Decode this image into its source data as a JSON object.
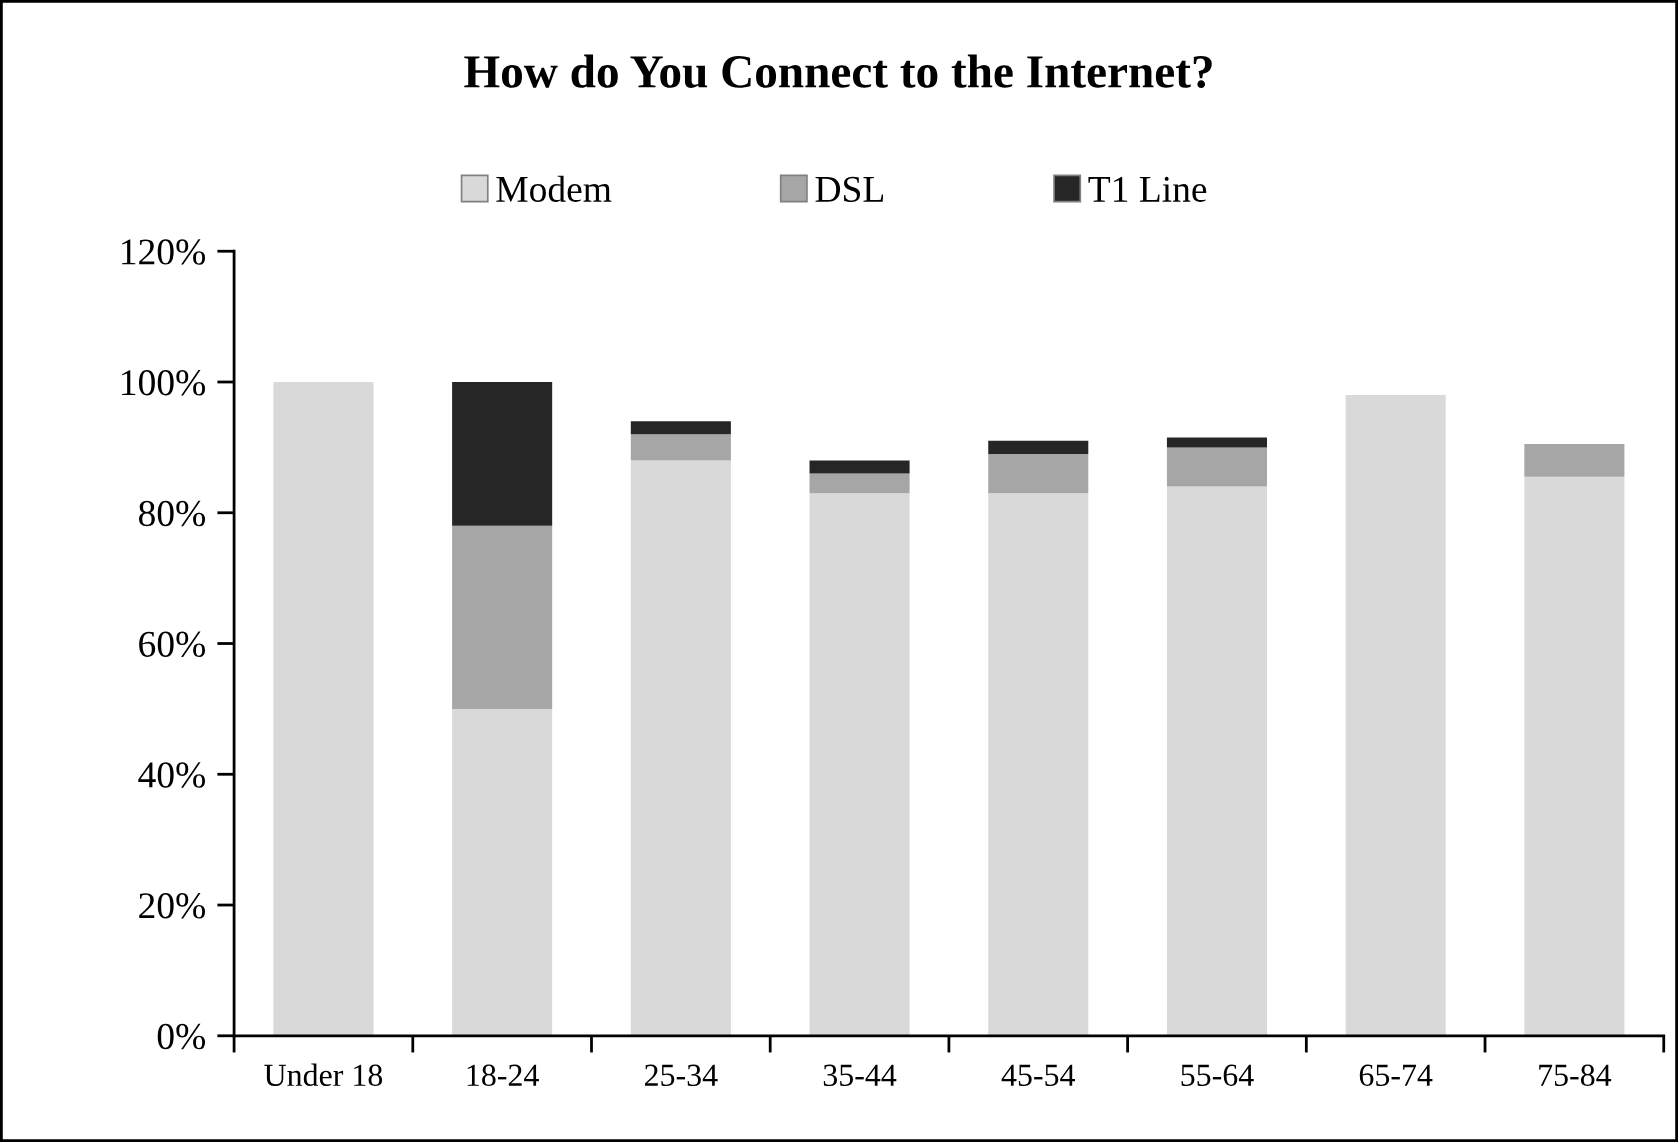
{
  "chart_data": {
    "type": "bar",
    "title": "How do You Connect to the Internet?",
    "categories": [
      "Under 18",
      "18-24",
      "25-34",
      "35-44",
      "45-54",
      "55-64",
      "65-74",
      "75-84"
    ],
    "series": [
      {
        "name": "Modem",
        "color": "#d9d9d9",
        "values": [
          100,
          50,
          88,
          83,
          83,
          84,
          98,
          85.5
        ]
      },
      {
        "name": "DSL",
        "color": "#a6a6a6",
        "values": [
          null,
          28,
          4,
          3,
          6,
          6,
          null,
          5
        ]
      },
      {
        "name": "T1 Line",
        "color": "#262626",
        "values": [
          null,
          22,
          2,
          2,
          2,
          1.5,
          null,
          null
        ]
      }
    ],
    "stacked": true,
    "legend": "top",
    "ylim": [
      0,
      120
    ],
    "yticks": [
      {
        "value": 0,
        "label": "0%"
      },
      {
        "value": 20,
        "label": "20%"
      },
      {
        "value": 40,
        "label": "40%"
      },
      {
        "value": 60,
        "label": "60%"
      },
      {
        "value": 80,
        "label": "80%"
      },
      {
        "value": 100,
        "label": "100%"
      },
      {
        "value": 120,
        "label": "120%"
      }
    ]
  }
}
